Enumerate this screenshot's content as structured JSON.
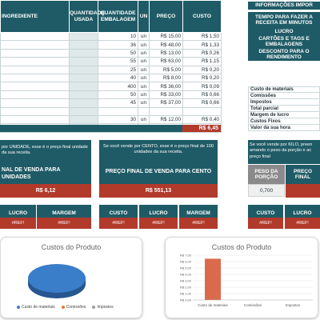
{
  "table": {
    "headers": {
      "ingredient": "INGREDIENTE",
      "qty_used": "QUANTIDADE USADA",
      "qty_pack": "QUANTIDADE EMBALAGEM",
      "unit": "UN",
      "price": "PREÇO",
      "cost": "CUSTO"
    },
    "rows": [
      {
        "pack": "10",
        "unit": "un",
        "price": "R$ 15,00",
        "cost": "R$ 1,50"
      },
      {
        "pack": "36",
        "unit": "un",
        "price": "R$ 48,00",
        "cost": "R$ 1,33"
      },
      {
        "pack": "50",
        "unit": "un",
        "price": "R$ 13,00",
        "cost": "R$ 0,26"
      },
      {
        "pack": "55",
        "unit": "un",
        "price": "R$ 63,00",
        "cost": "R$ 1,15"
      },
      {
        "pack": "25",
        "unit": "un",
        "price": "R$ 5,00",
        "cost": "R$ 0,20"
      },
      {
        "pack": "40",
        "unit": "un",
        "price": "R$ 8,00",
        "cost": "R$ 0,20"
      },
      {
        "pack": "400",
        "unit": "un",
        "price": "R$ 36,00",
        "cost": "R$ 0,09"
      },
      {
        "pack": "50",
        "unit": "un",
        "price": "R$ 33,00",
        "cost": "R$ 0,66"
      },
      {
        "pack": "45",
        "unit": "un",
        "price": "R$ 37,00",
        "cost": "R$ 0,66"
      },
      {
        "pack": "",
        "unit": "",
        "price": "",
        "cost": ""
      },
      {
        "pack": "30",
        "unit": "un",
        "price": "R$ 12,00",
        "cost": "R$ 0,40"
      },
      {
        "pack": "",
        "unit": "",
        "price": "",
        "cost": ""
      }
    ],
    "total": "R$ 6,45"
  },
  "info": {
    "title": "INFORMAÇÕES IMPOR",
    "time": "TEMPO PARA FAZER A RECEITA EM MINUTOS",
    "profit": "LUCRO",
    "cards_tags": "CARTÕES E TAGS E EMBALAGENS",
    "discount": "DESCONTO PARA O RENDIMENTO"
  },
  "costs": {
    "materials": "Custo de materiais",
    "commissions": "Comissões",
    "taxes": "Impostos",
    "partial": "Total parcial",
    "margin": "Margem de lucro",
    "fixed": "Custos Fixos",
    "hour": "Valor da sua hora"
  },
  "unit_box": {
    "note": "por UNIDADE, esse é o preço final unidade da sua receita.",
    "title": "NAL DE VENDA PARA UNIDADES",
    "value": "R$ 6,12"
  },
  "cento_box": {
    "note": "Se você vende por CENTO, esse é o preço final de 100 unidades da sua receita.",
    "title": "PREÇO FINAL DE VENDA PARA CENTO",
    "value": "R$ 551,13"
  },
  "kilo_box": {
    "note": "Se você vende por KILO, preen amarelo o peso da porção e ac preço final",
    "weight_label": "PESO DA PORÇÃO",
    "weight_value": "0,700",
    "price_label": "PREÇO FINAL"
  },
  "mini": {
    "unit": {
      "lucro": "LUCRO",
      "margem": "MARGEM",
      "lucro_val": "#REF!",
      "margem_val": "#REF!"
    },
    "cento": {
      "custo": "CUSTO",
      "lucro": "LUCRO",
      "margem": "MARGEM",
      "custo_val": "#REF!",
      "lucro_val": "#REF!",
      "margem_val": "#REF!"
    },
    "kilo": {
      "custo": "CUSTO",
      "lucro": "LUCRO",
      "custo_val": "#REF!",
      "lucro_val": "#REF!"
    }
  },
  "pie_chart": {
    "title": "Custos do Produto",
    "legend": [
      "Custo de materiais",
      "Comissões",
      "Impostos"
    ],
    "colors": [
      "#3a7dc9",
      "#e07b39",
      "#9e9e9e"
    ]
  },
  "chart_data": {
    "type": "bar",
    "title": "Custos do Produto",
    "categories": [
      "Custo de materiais",
      "Comissões",
      "Impostos"
    ],
    "values": [
      6.45,
      0,
      0
    ],
    "ylim": [
      0,
      7
    ],
    "yticks": [
      "R$ 0,00",
      "R$ 1,00",
      "R$ 2,00",
      "R$ 3,00",
      "R$ 4,00",
      "R$ 5,00",
      "R$ 6,00",
      "R$ 7,00"
    ],
    "bar_color": "#d96a4c"
  }
}
